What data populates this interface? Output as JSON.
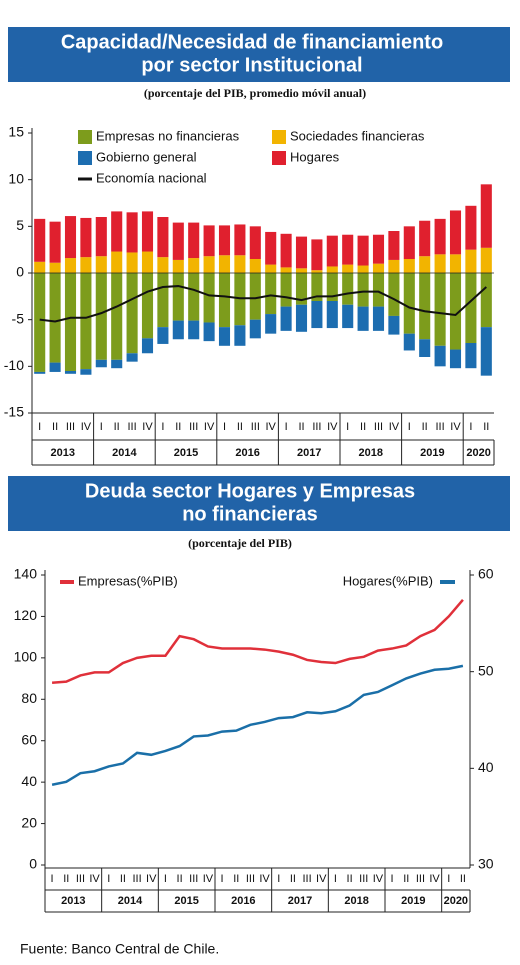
{
  "chart_data": [
    {
      "type": "bar",
      "stacked": true,
      "title": [
        "Capacidad/Necesidad de financiamiento",
        "por sector Institucional"
      ],
      "subtitle": "(porcentaje del PIB, promedio móvil anual)",
      "categories": [
        "I",
        "II",
        "III",
        "IV",
        "I",
        "II",
        "III",
        "IV",
        "I",
        "II",
        "III",
        "IV",
        "I",
        "II",
        "III",
        "IV",
        "I",
        "II",
        "III",
        "IV",
        "I",
        "II",
        "III",
        "IV",
        "I",
        "II",
        "III",
        "IV",
        "I",
        "II"
      ],
      "year_labels": [
        "2013",
        "2014",
        "2015",
        "2016",
        "2017",
        "2018",
        "2019",
        "2020"
      ],
      "ylim": [
        -15,
        15
      ],
      "yticks": [
        15,
        10,
        5,
        0,
        -5,
        -10,
        -15
      ],
      "series": [
        {
          "name": "Empresas no financieras",
          "type": "bar",
          "color": "#7d9c1c",
          "values": [
            -10.6,
            -9.6,
            -10.5,
            -10.3,
            -9.3,
            -9.3,
            -8.6,
            -7.0,
            -5.8,
            -5.1,
            -5.1,
            -5.3,
            -5.8,
            -5.6,
            -5.0,
            -4.4,
            -3.6,
            -3.4,
            -3.0,
            -3.0,
            -3.4,
            -3.6,
            -3.6,
            -4.6,
            -6.5,
            -7.1,
            -7.8,
            -8.2,
            -7.5,
            -5.8
          ]
        },
        {
          "name": "Sociedades financieras",
          "type": "bar",
          "color": "#f2b400",
          "values": [
            1.2,
            1.1,
            1.6,
            1.7,
            1.8,
            2.3,
            2.2,
            2.3,
            1.7,
            1.4,
            1.6,
            1.8,
            1.9,
            1.9,
            1.5,
            0.9,
            0.6,
            0.5,
            0.3,
            0.7,
            0.9,
            0.8,
            1.0,
            1.4,
            1.5,
            1.8,
            2.0,
            2.0,
            2.5,
            2.7
          ]
        },
        {
          "name": "Gobierno general",
          "type": "bar",
          "color": "#1c6db0",
          "values": [
            -0.2,
            -1.0,
            -0.3,
            -0.6,
            -0.8,
            -0.9,
            -0.9,
            -1.6,
            -1.8,
            -2.0,
            -2.0,
            -2.0,
            -2.0,
            -2.2,
            -2.0,
            -2.1,
            -2.6,
            -2.9,
            -2.9,
            -2.9,
            -2.5,
            -2.6,
            -2.6,
            -2.0,
            -1.8,
            -1.9,
            -2.2,
            -2.0,
            -2.7,
            -5.2
          ]
        },
        {
          "name": "Hogares",
          "type": "bar",
          "color": "#e0202e",
          "values": [
            4.6,
            4.4,
            4.5,
            4.2,
            4.2,
            4.3,
            4.3,
            4.3,
            4.3,
            4.0,
            3.8,
            3.3,
            3.2,
            3.3,
            3.5,
            3.5,
            3.6,
            3.4,
            3.3,
            3.3,
            3.2,
            3.2,
            3.1,
            3.1,
            3.5,
            3.8,
            3.8,
            4.7,
            4.7,
            6.8
          ]
        },
        {
          "name": "Economía nacional",
          "type": "line",
          "color": "#111111",
          "values": [
            -5.0,
            -5.2,
            -4.8,
            -4.8,
            -4.3,
            -3.6,
            -2.8,
            -2.0,
            -1.5,
            -1.4,
            -1.8,
            -2.4,
            -2.5,
            -2.7,
            -2.7,
            -2.4,
            -2.6,
            -2.9,
            -2.5,
            -2.5,
            -2.2,
            -2.0,
            -2.0,
            -2.8,
            -3.7,
            -4.1,
            -4.3,
            -4.5,
            -3.0,
            -1.5
          ]
        }
      ]
    },
    {
      "type": "line",
      "title": [
        "Deuda sector Hogares y Empresas",
        "no financieras"
      ],
      "subtitle": "(porcentaje del PIB)",
      "categories": [
        "I",
        "II",
        "III",
        "IV",
        "I",
        "II",
        "III",
        "IV",
        "I",
        "II",
        "III",
        "IV",
        "I",
        "II",
        "III",
        "IV",
        "I",
        "II",
        "III",
        "IV",
        "I",
        "II",
        "III",
        "IV",
        "I",
        "II",
        "III",
        "IV",
        "I",
        "II"
      ],
      "year_labels": [
        "2013",
        "2014",
        "2015",
        "2016",
        "2017",
        "2018",
        "2019",
        "2020"
      ],
      "ylim": [
        0,
        140
      ],
      "yticks": [
        0,
        20,
        40,
        60,
        80,
        100,
        120,
        140
      ],
      "y2lim": [
        30,
        60
      ],
      "y2ticks": [
        30,
        40,
        50,
        60
      ],
      "series": [
        {
          "name": "Empresas(%PIB)",
          "color": "#e0303a",
          "values": [
            88,
            88.5,
            91.5,
            93,
            93,
            97.5,
            100,
            101,
            101,
            110.5,
            109,
            105.5,
            104.5,
            104.5,
            104.5,
            104,
            103,
            101.5,
            99,
            98,
            97.5,
            99.5,
            100.5,
            103.5,
            104.5,
            106,
            110.5,
            113.5,
            120,
            128
          ]
        },
        {
          "name": "Hogares(%PIB)",
          "color": "#1a6fa8",
          "axis": "y2",
          "values": [
            38.3,
            38.6,
            39.5,
            39.7,
            40.2,
            40.5,
            41.6,
            41.4,
            41.8,
            42.3,
            43.3,
            43.4,
            43.8,
            43.9,
            44.5,
            44.8,
            45.2,
            45.3,
            45.8,
            45.7,
            45.9,
            46.5,
            47.6,
            47.9,
            48.6,
            49.3,
            49.8,
            50.2,
            50.3,
            50.6
          ]
        }
      ]
    }
  ],
  "source": "Fuente: Banco Central de Chile."
}
